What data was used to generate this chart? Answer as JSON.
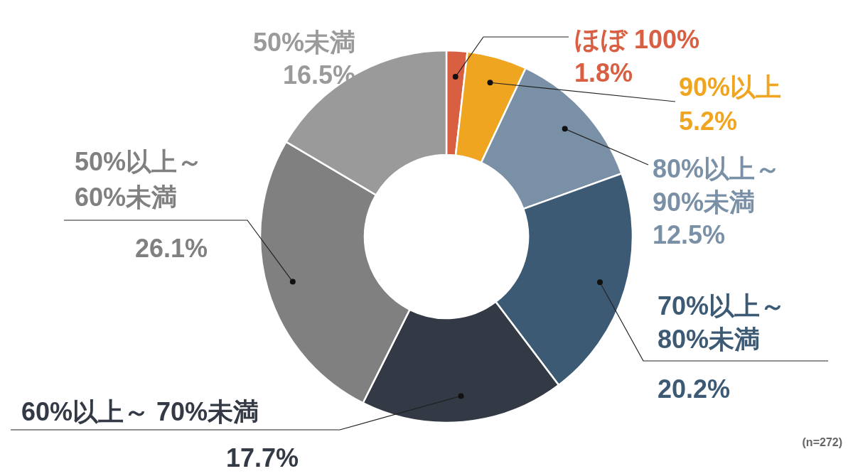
{
  "chart_data": {
    "type": "donut",
    "categories": [
      "ほぼ 100%",
      "90%以上",
      "80%以上～90%未満",
      "70%以上～80%未満",
      "60%以上～ 70%未満",
      "50%以上～60%未満",
      "50%未満"
    ],
    "values": [
      1.8,
      5.2,
      12.5,
      20.2,
      17.7,
      26.1,
      16.5
    ],
    "value_labels": [
      "1.8%",
      "5.2%",
      "12.5%",
      "20.2%",
      "17.7%",
      "26.1%",
      "16.5%"
    ],
    "colors": [
      "#d95f43",
      "#f0a521",
      "#7a90a6",
      "#3d5a75",
      "#333a45",
      "#808080",
      "#9a9a9a"
    ],
    "annotations": [
      "(n=272)"
    ]
  }
}
